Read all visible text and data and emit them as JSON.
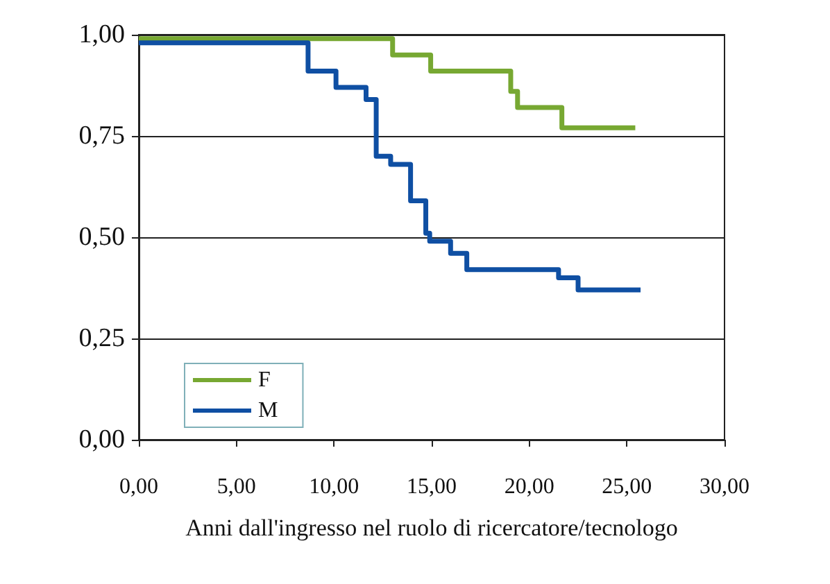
{
  "chart_data": {
    "type": "step",
    "xlabel": "Anni dall'ingresso nel ruolo di ricercatore/tecnologo",
    "xlim": [
      0,
      30
    ],
    "xticks": [
      {
        "value": 0,
        "label": "0,00"
      },
      {
        "value": 5,
        "label": "5,00"
      },
      {
        "value": 10,
        "label": "10,00"
      },
      {
        "value": 15,
        "label": "15,00"
      },
      {
        "value": 20,
        "label": "20,00"
      },
      {
        "value": 25,
        "label": "25,00"
      },
      {
        "value": 30,
        "label": "30,00"
      }
    ],
    "ylim": [
      0,
      1
    ],
    "yticks": [
      {
        "value": 0,
        "label": "0,00"
      },
      {
        "value": 0.25,
        "label": "0,25"
      },
      {
        "value": 0.5,
        "label": "0,50"
      },
      {
        "value": 0.75,
        "label": "0,75"
      },
      {
        "value": 1,
        "label": "1,00"
      }
    ],
    "grid": "y",
    "legend": "bottom left",
    "marker": "none",
    "line_style": "solid",
    "series": [
      {
        "name": "F",
        "color": "#77a832",
        "x": [
          0,
          13.0,
          14.95,
          19.05,
          19.4,
          21.67,
          25.43
        ],
        "values": [
          0.99,
          0.95,
          0.91,
          0.86,
          0.82,
          0.77,
          0.77
        ]
      },
      {
        "name": "M",
        "color": "#0f4fa3",
        "x": [
          0,
          8.67,
          10.1,
          11.64,
          12.16,
          12.9,
          13.92,
          14.7,
          14.9,
          15.97,
          16.8,
          21.5,
          22.5,
          25.7
        ],
        "values": [
          0.98,
          0.91,
          0.87,
          0.84,
          0.7,
          0.68,
          0.59,
          0.51,
          0.49,
          0.46,
          0.42,
          0.4,
          0.37,
          0.37
        ]
      }
    ]
  }
}
